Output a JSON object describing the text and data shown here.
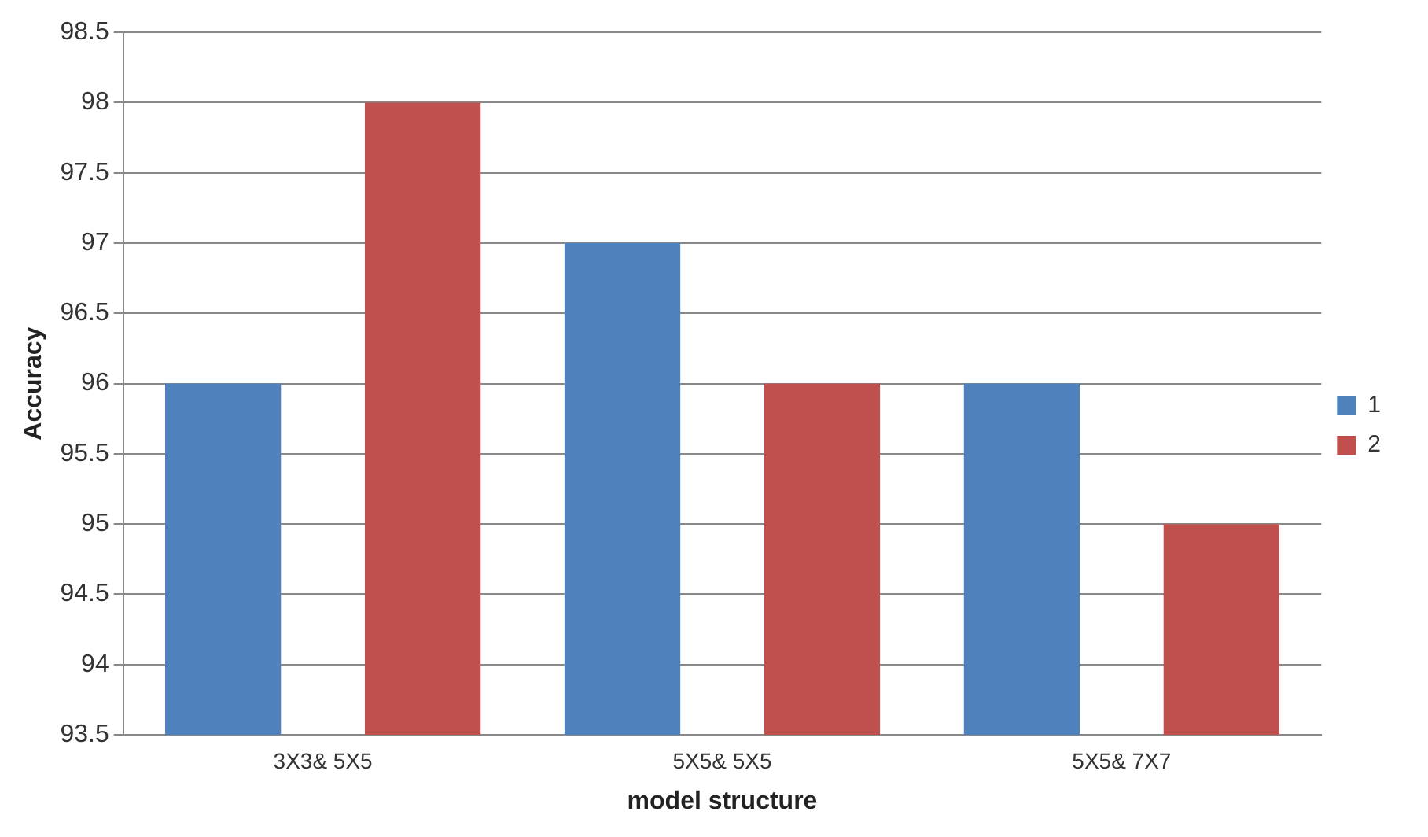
{
  "chart_data": {
    "type": "bar",
    "xlabel": "model structure",
    "ylabel": "Accuracy",
    "categories": [
      "3X3& 5X5",
      "5X5& 5X5",
      "5X5& 7X7"
    ],
    "series": [
      {
        "name": "1",
        "color": "#4f81bd",
        "values": [
          96,
          97,
          96
        ]
      },
      {
        "name": "2",
        "color": "#c0504d",
        "values": [
          98,
          96,
          95
        ]
      }
    ],
    "ylim": [
      93.5,
      98.5
    ],
    "yticks": [
      93.5,
      94,
      94.5,
      95,
      95.5,
      96,
      96.5,
      97,
      97.5,
      98,
      98.5
    ],
    "grid": "y",
    "legend": "right"
  }
}
